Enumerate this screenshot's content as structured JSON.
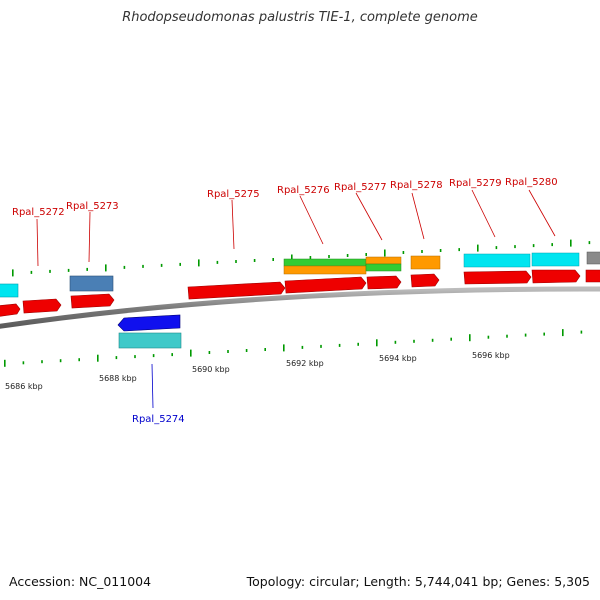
{
  "title": "Rhodopseudomonas palustris TIE-1, complete genome",
  "footer": {
    "accession": "Accession: NC_011004",
    "topology": "Topology: circular; Length: 5,744,041 bp; Genes: 5,305"
  },
  "colors": {
    "forward_cds": "#ff0000",
    "reverse_cds": "#0000ff",
    "cyan_feature": "#00e5f0",
    "teal_feature": "#3fc9c9",
    "steel_feature": "#4a7fb5",
    "orange_feature": "#ff9900",
    "green_feature": "#33cc33",
    "backbone": "#888888",
    "tick": "#009900",
    "label_red": "#cc0000",
    "label_blue": "#0000cc"
  },
  "scale_labels": [
    "5686 kbp",
    "5688 kbp",
    "5690 kbp",
    "5692 kbp",
    "5694 kbp",
    "5696 kbp"
  ],
  "genes": [
    {
      "id": "Rpal_5272",
      "strand": "forward"
    },
    {
      "id": "Rpal_5273",
      "strand": "forward"
    },
    {
      "id": "Rpal_5274",
      "strand": "reverse"
    },
    {
      "id": "Rpal_5275",
      "strand": "forward"
    },
    {
      "id": "Rpal_5276",
      "strand": "forward"
    },
    {
      "id": "Rpal_5277",
      "strand": "forward"
    },
    {
      "id": "Rpal_5278",
      "strand": "forward"
    },
    {
      "id": "Rpal_5279",
      "strand": "forward"
    },
    {
      "id": "Rpal_5280",
      "strand": "forward"
    }
  ]
}
